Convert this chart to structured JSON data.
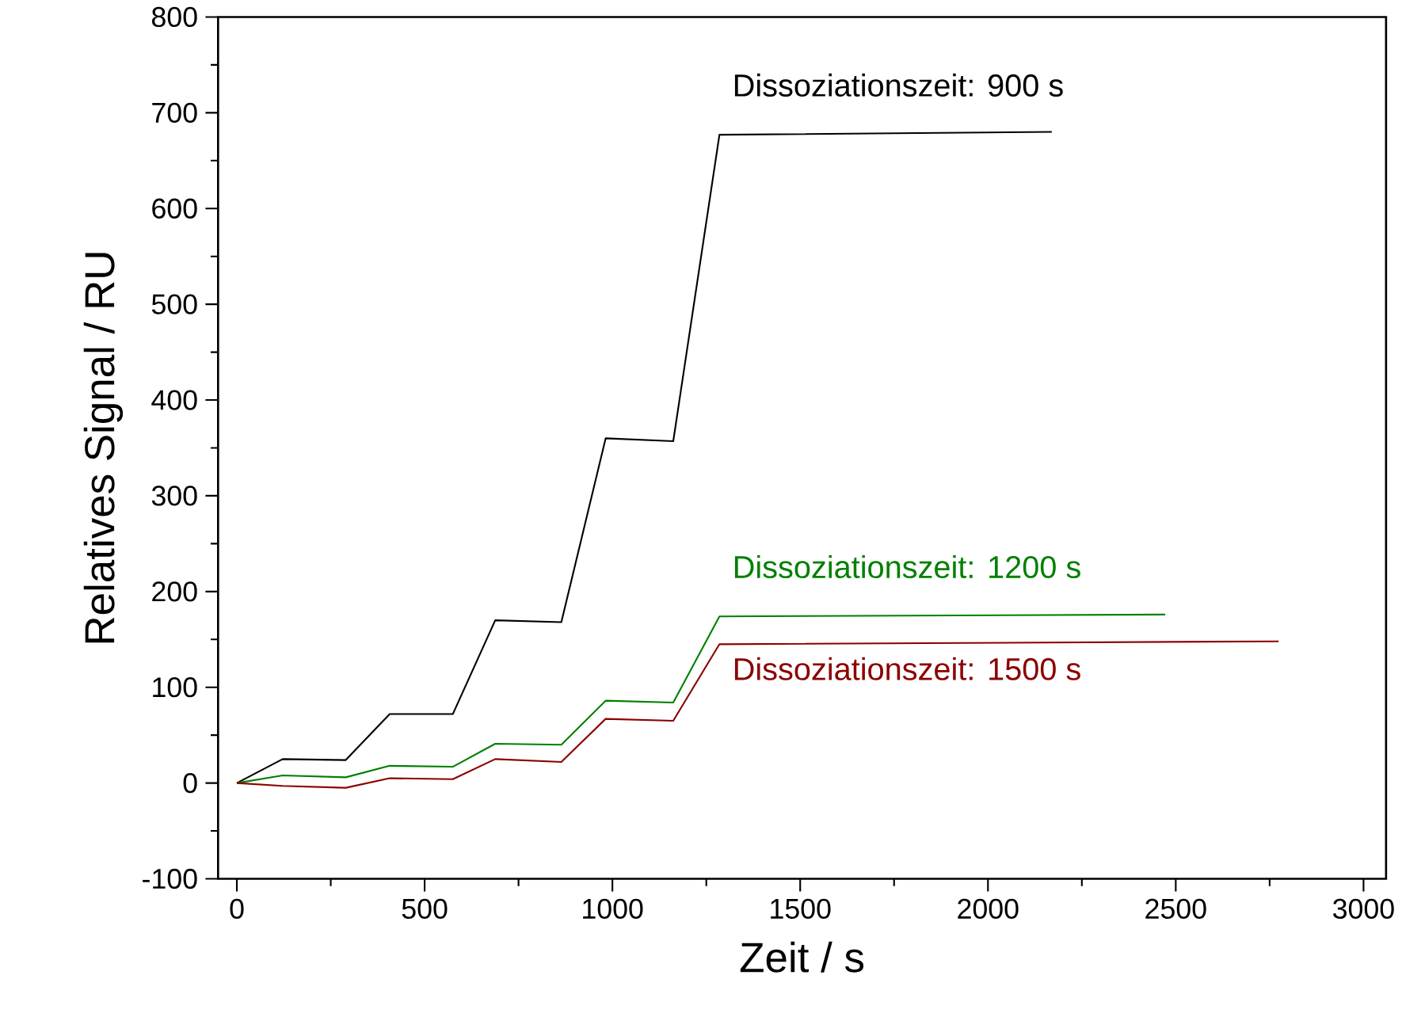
{
  "chart_data": {
    "type": "line",
    "xlabel": "Zeit / s",
    "ylabel": "Relatives Signal / RU",
    "xlim": [
      -50,
      3060
    ],
    "ylim": [
      -100,
      800
    ],
    "xticks": [
      0,
      500,
      1000,
      1500,
      2000,
      2500,
      3000
    ],
    "yticks": [
      -100,
      0,
      100,
      200,
      300,
      400,
      500,
      600,
      700,
      800
    ],
    "grid": false,
    "legend": false,
    "series": [
      {
        "name": "Dissoziationszeit: 900 s",
        "color": "#000000",
        "x": [
          0,
          122,
          290,
          407,
          575,
          688,
          864,
          982,
          1162,
          1285,
          2170
        ],
        "values": [
          0,
          25,
          24,
          72,
          72,
          170,
          168,
          360,
          357,
          677,
          680
        ]
      },
      {
        "name": "Dissoziationszeit: 1200 s",
        "color": "#008000",
        "x": [
          0,
          122,
          290,
          407,
          575,
          688,
          864,
          982,
          1162,
          1285,
          2472
        ],
        "values": [
          0,
          8,
          6,
          18,
          17,
          41,
          40,
          86,
          84,
          174,
          176
        ]
      },
      {
        "name": "Dissoziationszeit: 1500 s",
        "color": "#8b0000",
        "x": [
          0,
          122,
          290,
          407,
          575,
          688,
          864,
          982,
          1162,
          1285,
          2774
        ],
        "values": [
          0,
          -3,
          -5,
          5,
          4,
          25,
          22,
          67,
          65,
          145,
          148
        ]
      }
    ]
  }
}
